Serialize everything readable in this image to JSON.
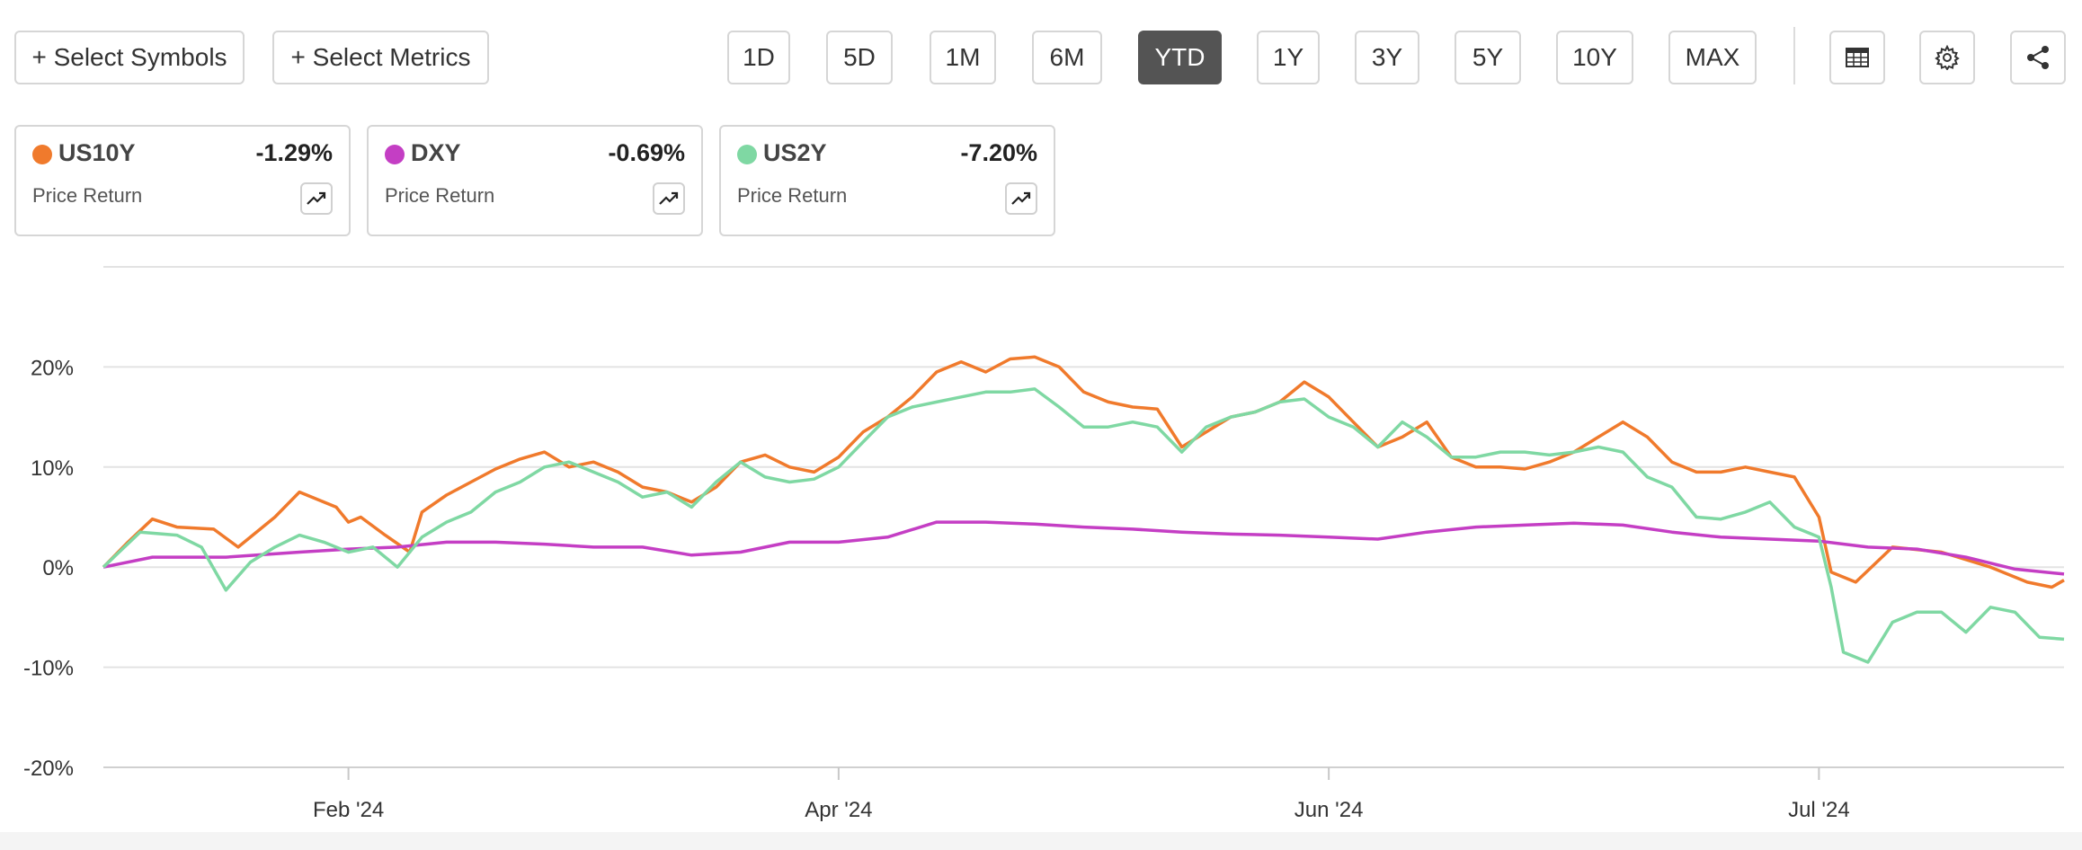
{
  "toolbar": {
    "select_symbols": "+ Select Symbols",
    "select_metrics": "+ Select Metrics",
    "ranges": [
      "1D",
      "5D",
      "1M",
      "6M",
      "YTD",
      "1Y",
      "3Y",
      "5Y",
      "10Y",
      "MAX"
    ],
    "active_range": "YTD"
  },
  "cards": [
    {
      "symbol": "US10Y",
      "change": "-1.29%",
      "metric": "Price Return",
      "color": "#f07a2c"
    },
    {
      "symbol": "DXY",
      "change": "-0.69%",
      "metric": "Price Return",
      "color": "#c43ec4"
    },
    {
      "symbol": "US2Y",
      "change": "-7.20%",
      "metric": "Price Return",
      "color": "#7fd8a3"
    }
  ],
  "chart_data": {
    "type": "line",
    "y_ticks": [
      "20%",
      "10%",
      "0%",
      "-10%",
      "-20%"
    ],
    "y_tick_values": [
      20,
      10,
      0,
      -10,
      -20
    ],
    "ylim": [
      -20,
      30
    ],
    "x_ticks": [
      "Feb '24",
      "Apr '24",
      "Jun '24",
      "Jul '24"
    ],
    "x_tick_values": [
      1.0,
      3.0,
      5.0,
      7.0
    ],
    "xlim": [
      0,
      8.0
    ],
    "grid": true,
    "series": [
      {
        "name": "US10Y",
        "color": "#f07a2c",
        "points": [
          [
            0,
            0
          ],
          [
            0.1,
            2.5
          ],
          [
            0.2,
            4.8
          ],
          [
            0.3,
            4
          ],
          [
            0.45,
            3.8
          ],
          [
            0.55,
            2
          ],
          [
            0.7,
            5
          ],
          [
            0.8,
            7.5
          ],
          [
            0.95,
            6
          ],
          [
            1.0,
            4.5
          ],
          [
            1.05,
            5
          ],
          [
            1.15,
            3.2
          ],
          [
            1.25,
            1.5
          ],
          [
            1.3,
            5.5
          ],
          [
            1.4,
            7.2
          ],
          [
            1.5,
            8.5
          ],
          [
            1.6,
            9.8
          ],
          [
            1.7,
            10.8
          ],
          [
            1.8,
            11.5
          ],
          [
            1.9,
            10
          ],
          [
            2.0,
            10.5
          ],
          [
            2.1,
            9.5
          ],
          [
            2.2,
            8
          ],
          [
            2.3,
            7.5
          ],
          [
            2.4,
            6.5
          ],
          [
            2.5,
            8
          ],
          [
            2.6,
            10.5
          ],
          [
            2.7,
            11.2
          ],
          [
            2.8,
            10
          ],
          [
            2.9,
            9.5
          ],
          [
            3.0,
            11
          ],
          [
            3.1,
            13.5
          ],
          [
            3.2,
            15
          ],
          [
            3.3,
            17
          ],
          [
            3.4,
            19.5
          ],
          [
            3.5,
            20.5
          ],
          [
            3.6,
            19.5
          ],
          [
            3.7,
            20.8
          ],
          [
            3.8,
            21
          ],
          [
            3.9,
            20
          ],
          [
            4.0,
            17.5
          ],
          [
            4.1,
            16.5
          ],
          [
            4.2,
            16
          ],
          [
            4.3,
            15.8
          ],
          [
            4.4,
            12
          ],
          [
            4.5,
            13.5
          ],
          [
            4.6,
            15
          ],
          [
            4.7,
            15.5
          ],
          [
            4.8,
            16.5
          ],
          [
            4.9,
            18.5
          ],
          [
            5.0,
            17
          ],
          [
            5.1,
            14.5
          ],
          [
            5.2,
            12
          ],
          [
            5.3,
            13
          ],
          [
            5.4,
            14.5
          ],
          [
            5.5,
            11
          ],
          [
            5.6,
            10
          ],
          [
            5.7,
            10
          ],
          [
            5.8,
            9.8
          ],
          [
            5.9,
            10.5
          ],
          [
            6.0,
            11.5
          ],
          [
            6.1,
            13
          ],
          [
            6.2,
            14.5
          ],
          [
            6.3,
            13
          ],
          [
            6.4,
            10.5
          ],
          [
            6.5,
            9.5
          ],
          [
            6.6,
            9.5
          ],
          [
            6.7,
            10
          ],
          [
            6.8,
            9.5
          ],
          [
            6.9,
            9
          ],
          [
            7.0,
            5
          ],
          [
            7.05,
            -0.5
          ],
          [
            7.15,
            -1.5
          ],
          [
            7.3,
            2
          ],
          [
            7.5,
            1.5
          ],
          [
            7.7,
            0
          ],
          [
            7.85,
            -1.5
          ],
          [
            7.95,
            -2
          ],
          [
            8.0,
            -1.3
          ]
        ]
      },
      {
        "name": "DXY",
        "color": "#c43ec4",
        "points": [
          [
            0,
            0
          ],
          [
            0.2,
            1
          ],
          [
            0.5,
            1
          ],
          [
            0.8,
            1.5
          ],
          [
            1.0,
            1.8
          ],
          [
            1.2,
            2
          ],
          [
            1.4,
            2.5
          ],
          [
            1.6,
            2.5
          ],
          [
            1.8,
            2.3
          ],
          [
            2.0,
            2
          ],
          [
            2.2,
            2
          ],
          [
            2.4,
            1.2
          ],
          [
            2.6,
            1.5
          ],
          [
            2.8,
            2.5
          ],
          [
            3.0,
            2.5
          ],
          [
            3.2,
            3
          ],
          [
            3.4,
            4.5
          ],
          [
            3.6,
            4.5
          ],
          [
            3.8,
            4.3
          ],
          [
            4.0,
            4
          ],
          [
            4.2,
            3.8
          ],
          [
            4.4,
            3.5
          ],
          [
            4.6,
            3.3
          ],
          [
            4.8,
            3.2
          ],
          [
            5.0,
            3
          ],
          [
            5.2,
            2.8
          ],
          [
            5.4,
            3.5
          ],
          [
            5.6,
            4
          ],
          [
            5.8,
            4.2
          ],
          [
            6.0,
            4.4
          ],
          [
            6.2,
            4.2
          ],
          [
            6.4,
            3.5
          ],
          [
            6.6,
            3
          ],
          [
            6.8,
            2.8
          ],
          [
            7.0,
            2.6
          ],
          [
            7.2,
            2
          ],
          [
            7.4,
            1.8
          ],
          [
            7.6,
            1
          ],
          [
            7.8,
            -0.2
          ],
          [
            8.0,
            -0.69
          ]
        ]
      },
      {
        "name": "US2Y",
        "color": "#7fd8a3",
        "points": [
          [
            0,
            0
          ],
          [
            0.15,
            3.5
          ],
          [
            0.3,
            3.2
          ],
          [
            0.4,
            2
          ],
          [
            0.5,
            -2.3
          ],
          [
            0.6,
            0.5
          ],
          [
            0.7,
            2
          ],
          [
            0.8,
            3.2
          ],
          [
            0.9,
            2.5
          ],
          [
            1.0,
            1.5
          ],
          [
            1.1,
            2
          ],
          [
            1.2,
            0
          ],
          [
            1.3,
            3
          ],
          [
            1.4,
            4.5
          ],
          [
            1.5,
            5.5
          ],
          [
            1.6,
            7.5
          ],
          [
            1.7,
            8.5
          ],
          [
            1.8,
            10
          ],
          [
            1.9,
            10.5
          ],
          [
            2.0,
            9.5
          ],
          [
            2.1,
            8.5
          ],
          [
            2.2,
            7
          ],
          [
            2.3,
            7.5
          ],
          [
            2.4,
            6
          ],
          [
            2.5,
            8.5
          ],
          [
            2.6,
            10.5
          ],
          [
            2.7,
            9
          ],
          [
            2.8,
            8.5
          ],
          [
            2.9,
            8.8
          ],
          [
            3.0,
            10
          ],
          [
            3.1,
            12.5
          ],
          [
            3.2,
            15
          ],
          [
            3.3,
            16
          ],
          [
            3.4,
            16.5
          ],
          [
            3.5,
            17
          ],
          [
            3.6,
            17.5
          ],
          [
            3.7,
            17.5
          ],
          [
            3.8,
            17.8
          ],
          [
            3.9,
            16
          ],
          [
            4.0,
            14
          ],
          [
            4.1,
            14
          ],
          [
            4.2,
            14.5
          ],
          [
            4.3,
            14
          ],
          [
            4.4,
            11.5
          ],
          [
            4.5,
            14
          ],
          [
            4.6,
            15
          ],
          [
            4.7,
            15.5
          ],
          [
            4.8,
            16.5
          ],
          [
            4.9,
            16.8
          ],
          [
            5.0,
            15
          ],
          [
            5.1,
            14
          ],
          [
            5.2,
            12
          ],
          [
            5.3,
            14.5
          ],
          [
            5.4,
            13
          ],
          [
            5.5,
            11
          ],
          [
            5.6,
            11
          ],
          [
            5.7,
            11.5
          ],
          [
            5.8,
            11.5
          ],
          [
            5.9,
            11.2
          ],
          [
            6.0,
            11.5
          ],
          [
            6.1,
            12
          ],
          [
            6.2,
            11.5
          ],
          [
            6.3,
            9
          ],
          [
            6.4,
            8
          ],
          [
            6.5,
            5
          ],
          [
            6.6,
            4.8
          ],
          [
            6.7,
            5.5
          ],
          [
            6.8,
            6.5
          ],
          [
            6.9,
            4
          ],
          [
            7.0,
            3
          ],
          [
            7.05,
            -2
          ],
          [
            7.1,
            -8.5
          ],
          [
            7.2,
            -9.5
          ],
          [
            7.3,
            -5.5
          ],
          [
            7.4,
            -4.5
          ],
          [
            7.5,
            -4.5
          ],
          [
            7.6,
            -6.5
          ],
          [
            7.7,
            -4
          ],
          [
            7.8,
            -4.5
          ],
          [
            7.9,
            -7
          ],
          [
            8.0,
            -7.2
          ]
        ]
      }
    ]
  }
}
